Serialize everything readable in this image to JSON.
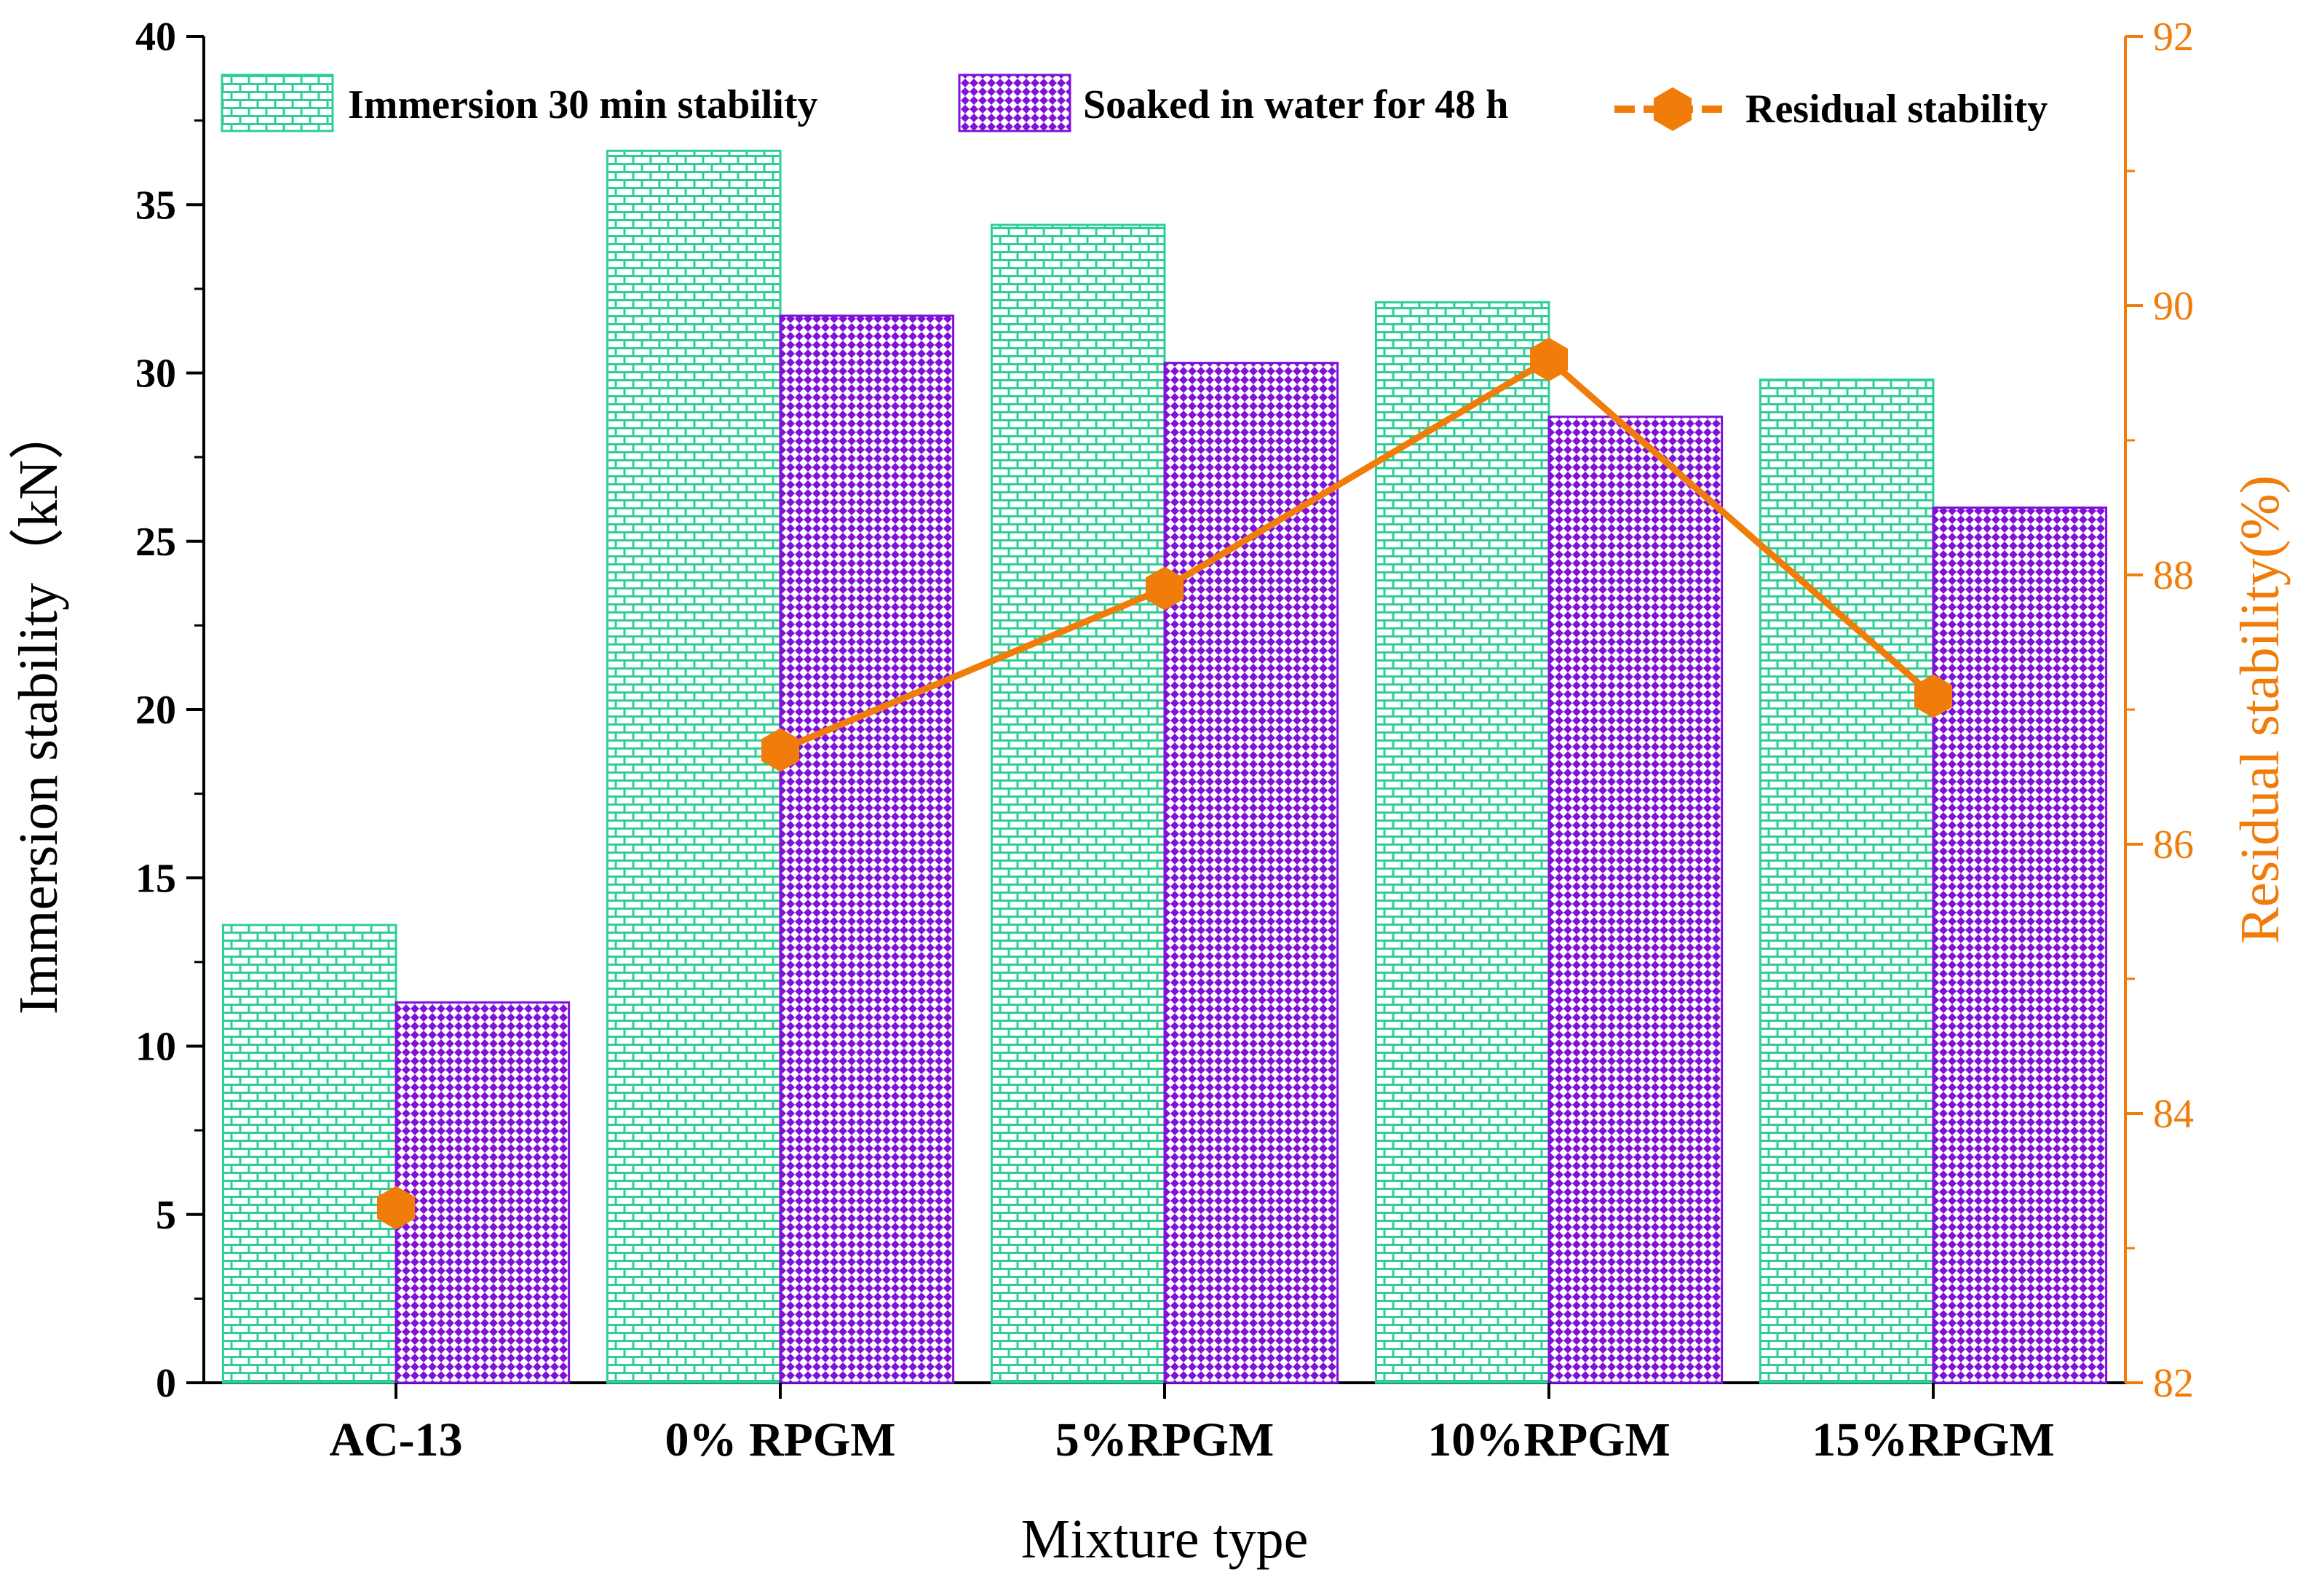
{
  "chart_data": {
    "type": "bar",
    "categories": [
      "AC-13",
      "0% RPGM",
      "5%RPGM",
      "10%RPGM",
      "15%RPGM"
    ],
    "series": [
      {
        "name": "Immersion 30 min stability",
        "axis": "left",
        "kind": "bar",
        "color": "#2dcf96",
        "pattern": "brick",
        "values": [
          13.6,
          36.6,
          34.4,
          32.1,
          29.8
        ]
      },
      {
        "name": "Soaked in water for 48 h",
        "axis": "left",
        "kind": "bar",
        "color": "#7f12d8",
        "pattern": "checker",
        "values": [
          11.3,
          31.7,
          30.3,
          28.7,
          26.0
        ]
      },
      {
        "name": "Residual stability",
        "axis": "right",
        "kind": "line",
        "color": "#f07c0a",
        "marker": "hexagon",
        "values": [
          83.3,
          86.7,
          87.9,
          89.6,
          87.1
        ]
      }
    ],
    "xlabel": "Mixture type",
    "ylabel": "Immersion stability（kN）",
    "ylabel_right": "Residual stability(%)",
    "ylim": [
      0,
      40
    ],
    "ylim_right": [
      82,
      92
    ],
    "yticks": [
      "0",
      "5",
      "10",
      "15",
      "20",
      "25",
      "30",
      "35",
      "40"
    ],
    "yticks_right": [
      "82",
      "84",
      "86",
      "88",
      "90",
      "92"
    ],
    "legend_position": "top",
    "grid": false
  }
}
